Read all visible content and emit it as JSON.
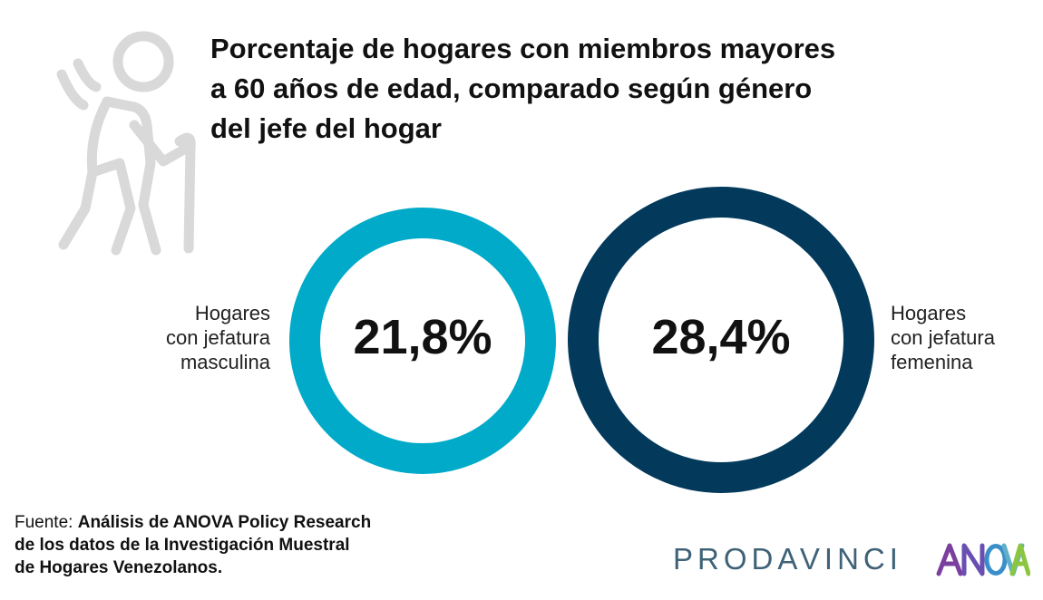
{
  "title_lines": [
    "Porcentaje de hogares con miembros mayores",
    "a 60 años de edad, comparado según género",
    "del jefe del hogar"
  ],
  "icon": "elderly-person-with-cane-icon",
  "chart_data": {
    "type": "donut",
    "title": "Porcentaje de hogares con miembros mayores a 60 años de edad, comparado según género del jefe del hogar",
    "series": [
      {
        "name": "Hogares con jefatura masculina",
        "label_lines": [
          "Hogares",
          "con jefatura",
          "masculina"
        ],
        "value": 21.8,
        "value_label": "21,8%",
        "color": "#00aac8"
      },
      {
        "name": "Hogares con jefatura femenina",
        "label_lines": [
          "Hogares",
          "con jefatura",
          "femenina"
        ],
        "value": 28.4,
        "value_label": "28,4%",
        "color": "#033a5c"
      }
    ]
  },
  "source": {
    "prefix": "Fuente: ",
    "lines": [
      "Análisis de ANOVA Policy Research",
      "de los datos de la Investigación Muestral",
      "de Hogares Venezolanos."
    ]
  },
  "logos": {
    "prodavinci": "PRODAVINCI",
    "anova": "ANOVA",
    "prodavinci_color": "#3f6278",
    "anova_colors": [
      "#7b3fa0",
      "#3a8fc9",
      "#8cc63f"
    ]
  }
}
